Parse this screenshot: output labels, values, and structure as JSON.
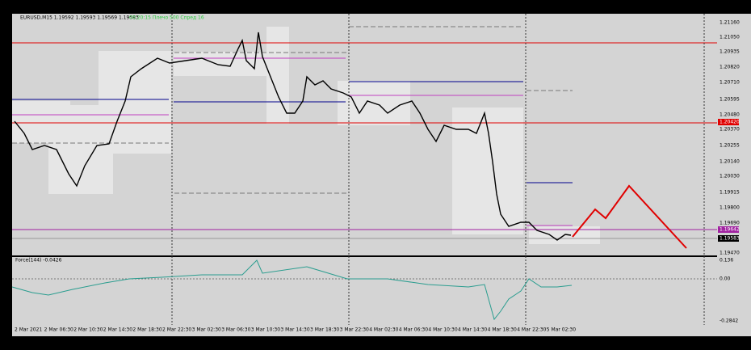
{
  "header": {
    "symbol": "EURUSD,M15 1.19592 1.19593 1.19569 1.19583",
    "status": "00:20:15 Плечо 500 Спред 16"
  },
  "price_axis": {
    "labels": [
      "1.21160",
      "1.21050",
      "1.20935",
      "1.20820",
      "1.20710",
      "1.20595",
      "1.20480",
      "1.20420",
      "1.20370",
      "1.20255",
      "1.20140",
      "1.20030",
      "1.19915",
      "1.19800",
      "1.19690",
      "1.19642",
      "1.19583",
      "1.19470"
    ]
  },
  "indicator": {
    "title": "Force(144) -0.0426",
    "labels": [
      "0.136",
      "0.00",
      "-0.2842"
    ]
  },
  "time_axis": {
    "labels": [
      "2 Mar 2021",
      "2 Mar 06:30",
      "2 Mar 10:30",
      "2 Mar 14:30",
      "2 Mar 18:30",
      "2 Mar 22:30",
      "3 Mar 02:30",
      "3 Mar 06:30",
      "3 Mar 10:30",
      "3 Mar 14:30",
      "3 Mar 18:30",
      "3 Mar 22:30",
      "4 Mar 02:30",
      "4 Mar 06:30",
      "4 Mar 10:30",
      "4 Mar 14:30",
      "4 Mar 18:30",
      "4 Mar 22:30",
      "5 Mar 02:30"
    ]
  }
}
